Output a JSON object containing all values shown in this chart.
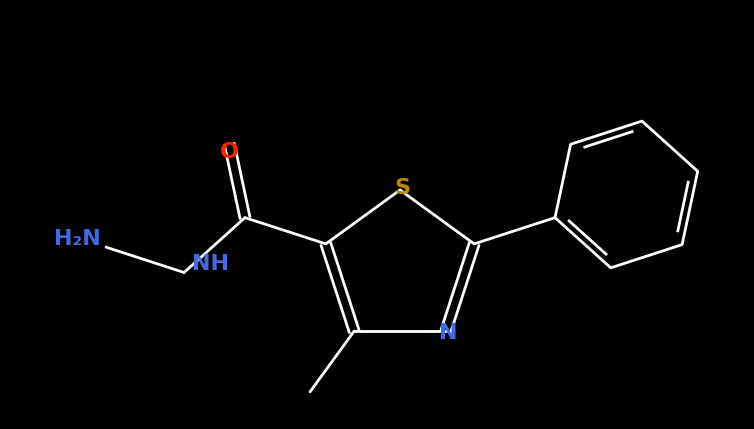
{
  "background_color": "#000000",
  "bond_color": "#ffffff",
  "atom_colors": {
    "S": "#b8860b",
    "N": "#4169e1",
    "O": "#ff2200",
    "C": "#ffffff",
    "H": "#ffffff"
  },
  "figsize": [
    7.54,
    4.29
  ],
  "dpi": 100,
  "lw": 2.0,
  "font_size": 16
}
